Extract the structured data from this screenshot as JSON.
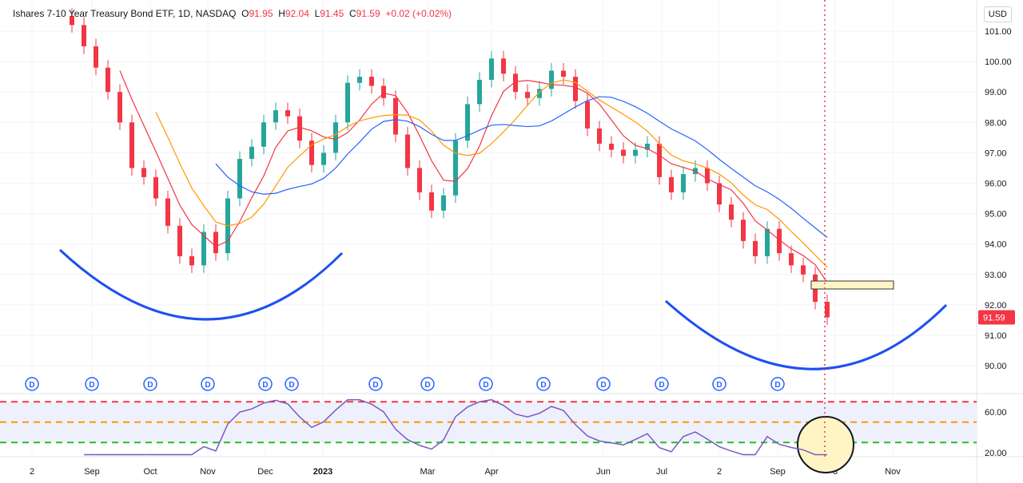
{
  "legend": {
    "title": "Ishares 7-10 Year Treasury Bond ETF, 1D, NASDAQ",
    "o_label": "O",
    "open": "91.95",
    "h_label": "H",
    "high": "92.04",
    "l_label": "L",
    "low": "91.45",
    "c_label": "C",
    "close": "91.59",
    "change": "+0.02 (+0.02%)"
  },
  "currency": "USD",
  "chart_data": {
    "type": "line",
    "subtype": "candlestick with moving averages and RSI pane",
    "ylim": [
      89.5,
      101.5
    ],
    "y_ticks": [
      "101.00",
      "100.00",
      "99.00",
      "98.00",
      "97.00",
      "96.00",
      "95.00",
      "94.00",
      "93.00",
      "92.00",
      "91.00",
      "90.00"
    ],
    "last_price": "91.59",
    "x_ticks": [
      "2",
      "Sep",
      "Oct",
      "Nov",
      "Dec",
      "2023",
      "Mar",
      "Apr",
      "Jun",
      "Jul",
      "2",
      "Sep",
      "3",
      "Nov"
    ],
    "closes": [
      101.2,
      100.5,
      99.8,
      99,
      98,
      96.5,
      96.2,
      95.5,
      94.6,
      93.6,
      93.3,
      94.4,
      93.7,
      95.5,
      96.8,
      97.2,
      98,
      98.4,
      98.2,
      97.4,
      96.6,
      97,
      98,
      99.3,
      99.5,
      99.2,
      98.8,
      97.6,
      96.5,
      95.7,
      95.1,
      95.6,
      97.4,
      98.6,
      99.4,
      100.1,
      99.6,
      99.0,
      98.8,
      99.1,
      99.7,
      99.5,
      98.7,
      97.8,
      97.3,
      97.1,
      96.9,
      97.1,
      97.3,
      96.2,
      95.7,
      96.3,
      96.5,
      96.0,
      95.3,
      94.8,
      94.1,
      93.6,
      94.5,
      93.7,
      93.3,
      93.0,
      92.1,
      91.59
    ],
    "moving_averages": [
      {
        "period": 5,
        "color": "#f23645"
      },
      {
        "period": 8,
        "color": "#ff9800"
      },
      {
        "period": 13,
        "color": "#2962ff"
      }
    ],
    "dividend_marker": "D",
    "rsi": {
      "y_ticks": [
        "60.00",
        "20.00"
      ],
      "levels": [
        {
          "value": 70,
          "color": "#f23645"
        },
        {
          "value": 50,
          "color": "#ff9800"
        },
        {
          "value": 30,
          "color": "#22c02a"
        }
      ],
      "color": "#7e57c2"
    },
    "colors": {
      "up": "#26a69a",
      "down": "#f23645",
      "arc": "#1e50f0",
      "highlight": "#fff5c4"
    },
    "grid": true
  }
}
